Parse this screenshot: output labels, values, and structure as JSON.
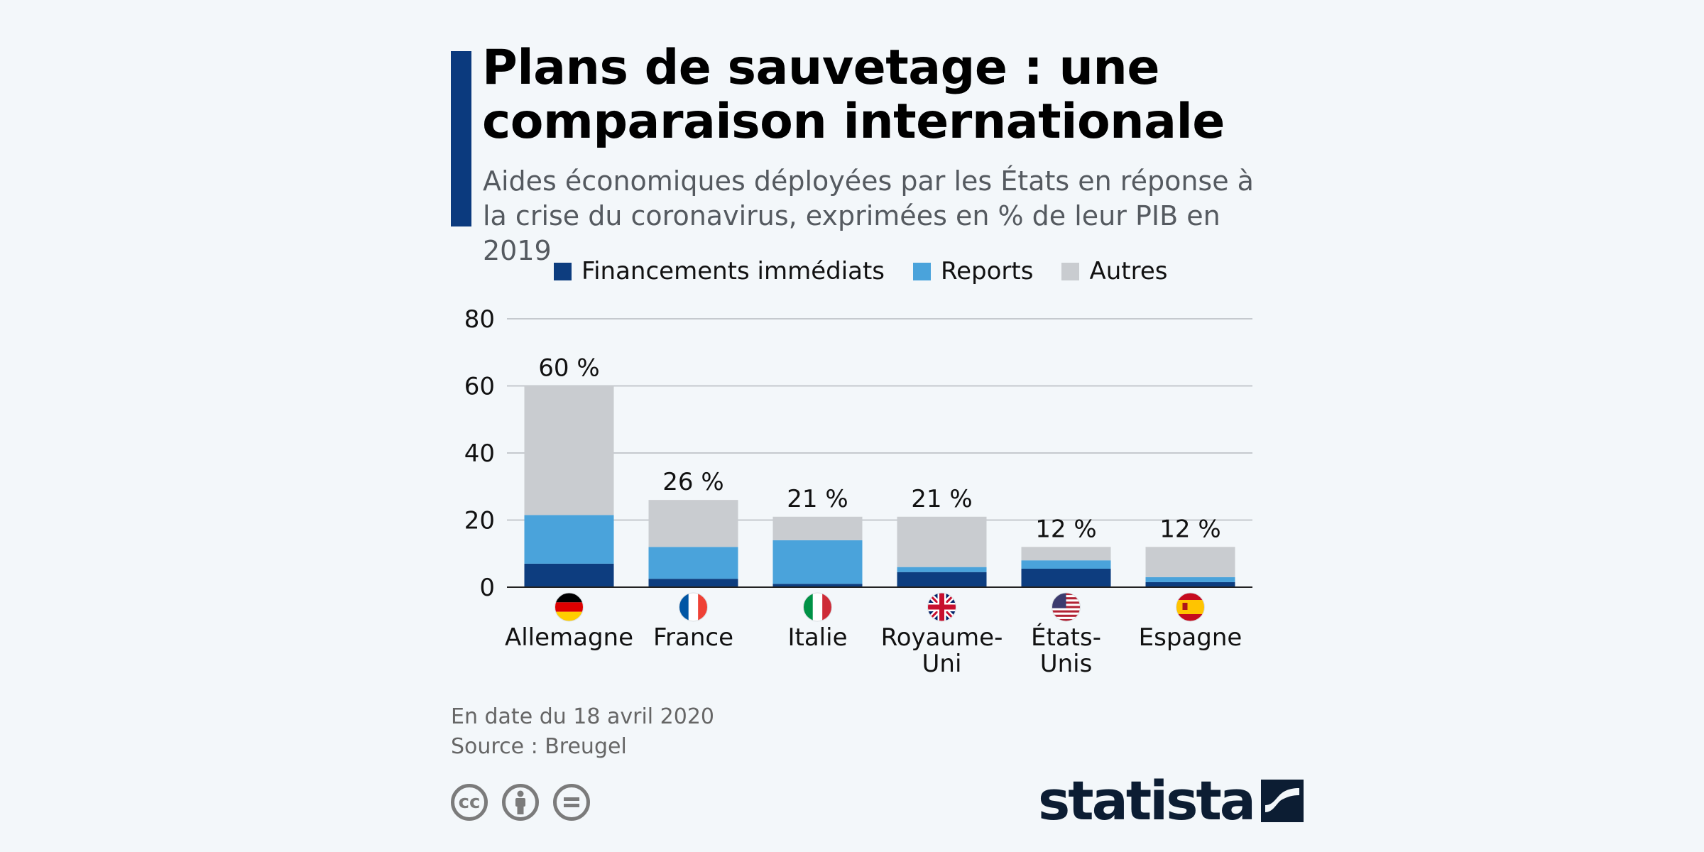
{
  "header": {
    "title": "Plans de sauvetage : une comparaison internationale",
    "subtitle": "Aides économiques déployées par les États en réponse à la crise du coronavirus, exprimées en % de leur PIB en 2019"
  },
  "footer": {
    "date_note": "En date du 18 avril 2020",
    "source": "Source : Breugel",
    "brand": "statista",
    "license_icons": [
      "cc-icon",
      "attribution-icon",
      "no-derivatives-icon"
    ]
  },
  "colors": {
    "accent": "#0b3a7e",
    "financements": "#0d3d7f",
    "reports": "#4aa3db",
    "autres": "#c9ccd0"
  },
  "chart_data": {
    "type": "bar",
    "stacked": true,
    "categories": [
      "Allemagne",
      "France",
      "Italie",
      "Royaume-Uni",
      "États-Unis",
      "Espagne"
    ],
    "category_lines": [
      [
        "Allemagne"
      ],
      [
        "France"
      ],
      [
        "Italie"
      ],
      [
        "Royaume-",
        "Uni"
      ],
      [
        "États-",
        "Unis"
      ],
      [
        "Espagne"
      ]
    ],
    "flags": [
      "germany-flag-icon",
      "france-flag-icon",
      "italy-flag-icon",
      "uk-flag-icon",
      "usa-flag-icon",
      "spain-flag-icon"
    ],
    "series": [
      {
        "name": "Financements immédiats",
        "values": [
          7,
          2.5,
          1,
          4.5,
          5.5,
          1.5
        ]
      },
      {
        "name": "Reports",
        "values": [
          14.5,
          9.5,
          13,
          1.5,
          2.5,
          1.5
        ]
      },
      {
        "name": "Autres",
        "values": [
          38.5,
          14,
          7,
          15,
          4,
          9
        ]
      }
    ],
    "totals": [
      60,
      26,
      21,
      21,
      12,
      12
    ],
    "total_labels": [
      "60 %",
      "26 %",
      "21 %",
      "21 %",
      "12 %",
      "12 %"
    ],
    "ylim": [
      0,
      80
    ],
    "yticks": [
      0,
      20,
      40,
      60,
      80
    ],
    "grid": true,
    "legend_position": "top"
  }
}
